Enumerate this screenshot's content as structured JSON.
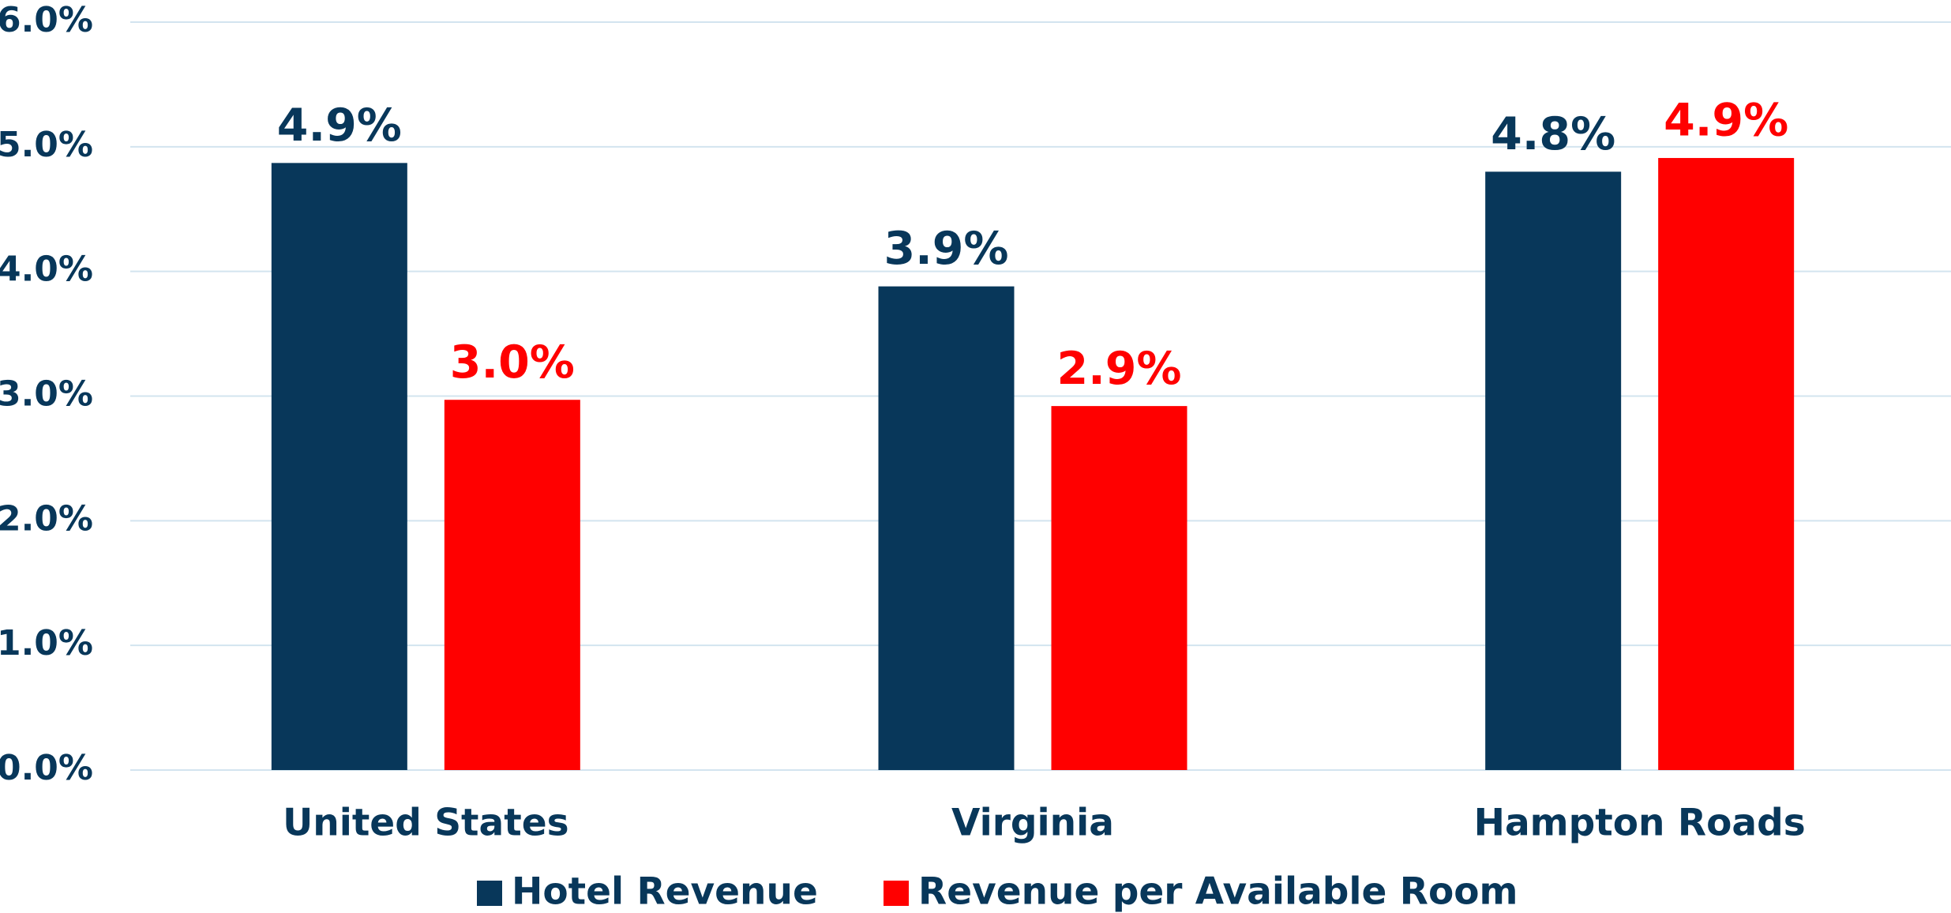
{
  "chart_data": {
    "type": "bar",
    "categories": [
      "United States",
      "Virginia",
      "Hampton Roads"
    ],
    "series": [
      {
        "name": "Hotel Revenue",
        "color": "#08375a",
        "values": [
          4.87,
          3.88,
          4.8
        ],
        "value_labels": [
          "4.9%",
          "3.9%",
          "4.8%"
        ]
      },
      {
        "name": "Revenue per Available Room",
        "color": "#ff0000",
        "values": [
          2.97,
          2.92,
          4.91
        ],
        "value_labels": [
          "3.0%",
          "2.9%",
          "4.9%"
        ]
      }
    ],
    "ylim": [
      0,
      6
    ],
    "yticks": [
      {
        "value": 0,
        "label": "0.0%"
      },
      {
        "value": 1,
        "label": "1.0%"
      },
      {
        "value": 2,
        "label": "2.0%"
      },
      {
        "value": 3,
        "label": "3.0%"
      },
      {
        "value": 4,
        "label": "4.0%"
      },
      {
        "value": 5,
        "label": "5.0%"
      },
      {
        "value": 6,
        "label": "6.0%"
      }
    ],
    "grid": true,
    "legend": "bottom"
  }
}
